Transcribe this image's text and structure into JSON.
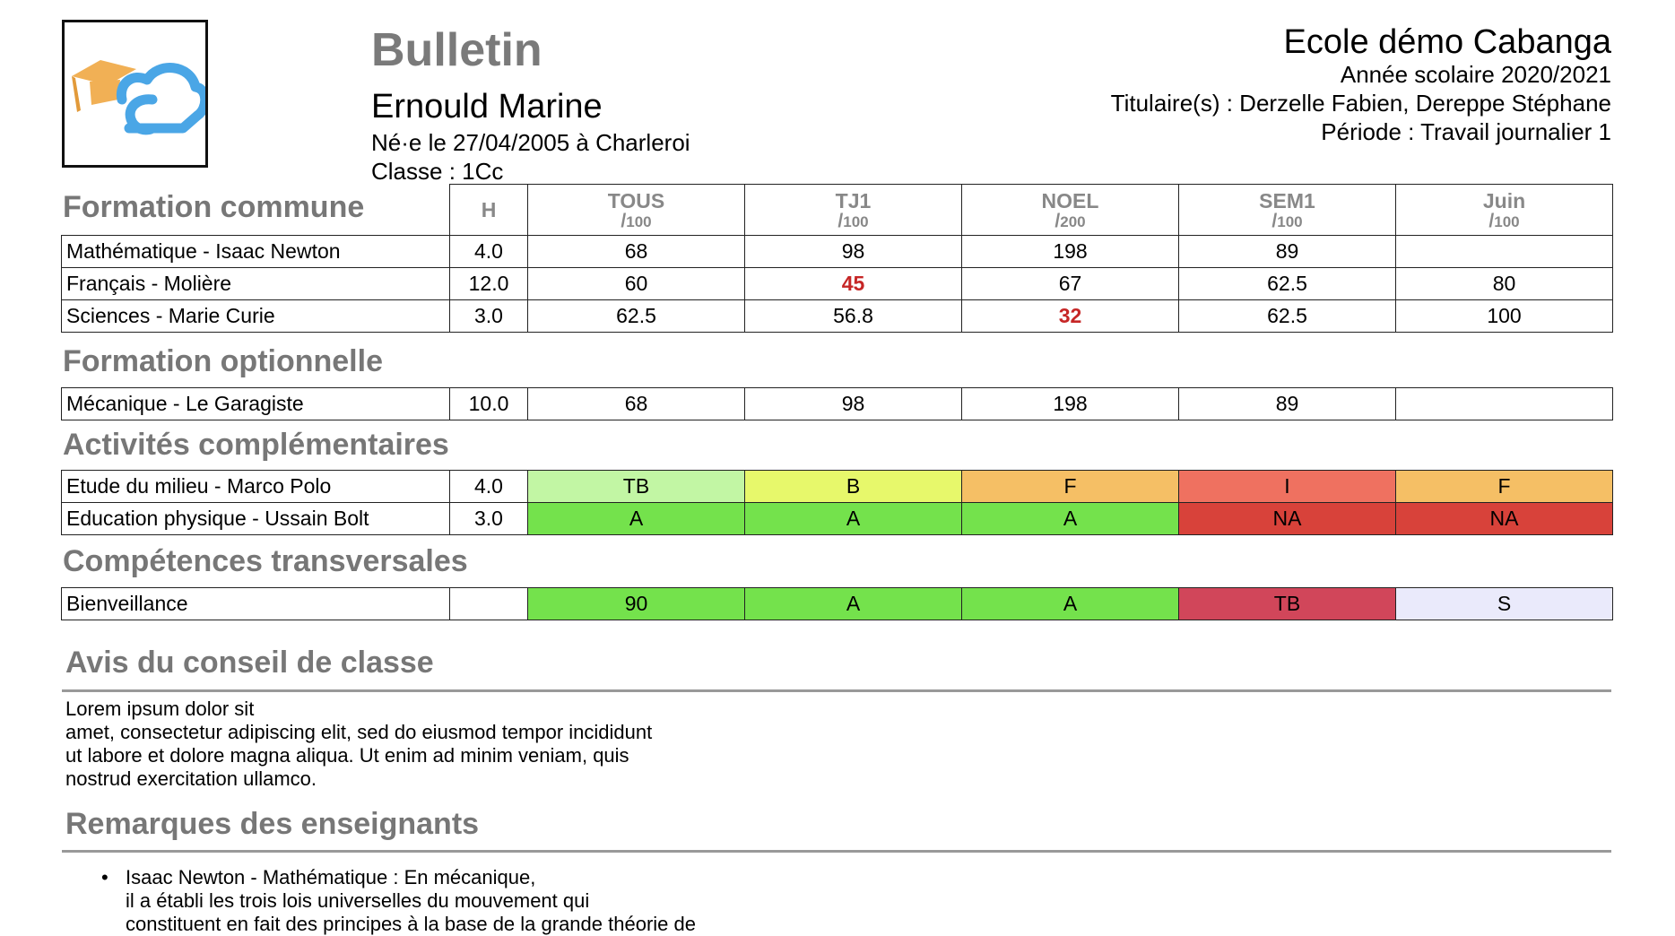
{
  "header": {
    "title": "Bulletin",
    "student_name": "Ernould Marine",
    "birth": "Né·e le 27/04/2005 à Charleroi",
    "class": "Classe : 1Cc",
    "school": "Ecole démo Cabanga",
    "year": "Année scolaire 2020/2021",
    "teachers": "Titulaire(s) : Derzelle Fabien, Dereppe Stéphane",
    "period": "Période : Travail journalier 1"
  },
  "columns": {
    "h": "H",
    "periods": [
      {
        "name": "TOUS",
        "slash": "/",
        "max": "100"
      },
      {
        "name": "TJ1",
        "slash": "/",
        "max": "100"
      },
      {
        "name": "NOEL",
        "slash": "/",
        "max": "200"
      },
      {
        "name": "SEM1",
        "slash": "/",
        "max": "100"
      },
      {
        "name": "Juin",
        "slash": "/",
        "max": "100"
      }
    ]
  },
  "sections": {
    "commune": {
      "title": "Formation commune",
      "rows": [
        {
          "subject": "Mathématique - Isaac Newton",
          "h": "4.0",
          "v": [
            "68",
            "98",
            "198",
            "89",
            ""
          ]
        },
        {
          "subject": "Français - Molière",
          "h": "12.0",
          "v": [
            "60",
            "45",
            "67",
            "62.5",
            "80"
          ]
        },
        {
          "subject": "Sciences - Marie Curie",
          "h": "3.0",
          "v": [
            "62.5",
            "56.8",
            "32",
            "62.5",
            "100"
          ]
        }
      ]
    },
    "optionnelle": {
      "title": "Formation optionnelle",
      "rows": [
        {
          "subject": "Mécanique - Le Garagiste",
          "h": "10.0",
          "v": [
            "68",
            "98",
            "198",
            "89",
            ""
          ]
        }
      ]
    },
    "activites": {
      "title": "Activités complémentaires",
      "rows": [
        {
          "subject": "Etude du milieu - Marco Polo",
          "h": "4.0",
          "v": [
            "TB",
            "B",
            "F",
            "I",
            "F"
          ]
        },
        {
          "subject": "Education physique - Ussain Bolt",
          "h": "3.0",
          "v": [
            "A",
            "A",
            "A",
            "NA",
            "NA"
          ]
        }
      ]
    },
    "competences": {
      "title": "Compétences transversales",
      "rows": [
        {
          "subject": "Bienveillance",
          "h": "",
          "v": [
            "90",
            "A",
            "A",
            "TB",
            "S"
          ]
        }
      ]
    }
  },
  "colors": {
    "fail_text": "#c62626",
    "tb_light": "#c2f6a4",
    "b_yellow": "#e7f86b",
    "f_orange": "#f5bf65",
    "i_salmon": "#ef7160",
    "a_green": "#74e24c",
    "na_red": "#d8423a",
    "tb_rose": "#d1465a",
    "s_lavender": "#eaeafb"
  },
  "notes": {
    "avis_title": "Avis du conseil de classe",
    "avis_lines": [
      "Lorem ipsum dolor sit",
      "amet, consectetur adipiscing elit, sed do eiusmod tempor incididunt",
      "ut labore et dolore magna aliqua. Ut enim ad minim veniam, quis",
      "nostrud exercitation ullamco."
    ],
    "remarques_title": "Remarques des enseignants",
    "remark_lines": [
      "Isaac Newton - Mathématique : En mécanique,",
      "il a établi les trois lois universelles du mouvement qui",
      "constituent en fait des principes à la base de la grande théorie de"
    ]
  }
}
